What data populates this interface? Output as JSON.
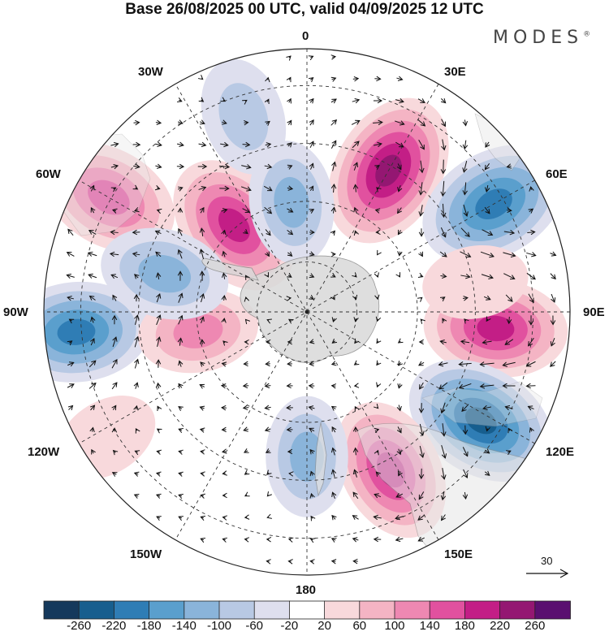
{
  "title": "Base 26/08/2025 00 UTC, valid 04/09/2025 12 UTC",
  "brand": "MODES",
  "brand_mark": "®",
  "longitude_labels": {
    "lon_0": "0",
    "lon_30e": "30E",
    "lon_60e": "60E",
    "lon_90e": "90E",
    "lon_120e": "120E",
    "lon_150e": "150E",
    "lon_180": "180",
    "lon_150w": "150W",
    "lon_120w": "120W",
    "lon_90w": "90W",
    "lon_60w": "60W",
    "lon_30w": "30W"
  },
  "reference_vector": "30",
  "colorbar": {
    "labels": [
      "-260",
      "-220",
      "-180",
      "-140",
      "-100",
      "-60",
      "-20",
      "20",
      "60",
      "100",
      "140",
      "180",
      "220",
      "260"
    ],
    "colors": [
      "#15395c",
      "#175e8e",
      "#2f7db5",
      "#5a9fcd",
      "#8ab4da",
      "#b8c9e4",
      "#dedfee",
      "#ffffff",
      "#f8d9dc",
      "#f4b4c4",
      "#ee88b2",
      "#e1519f",
      "#c31e86",
      "#941772",
      "#5a0f70"
    ]
  },
  "anomaly_centers": [
    {
      "lon": 30,
      "colat": 0.62,
      "value": 230
    },
    {
      "lon": 60,
      "colat": 0.82,
      "value": -220
    },
    {
      "lon": 95,
      "colat": 0.72,
      "value": 190
    },
    {
      "lon": 122,
      "colat": 0.78,
      "value": -230
    },
    {
      "lon": 152,
      "colat": 0.68,
      "value": 190
    },
    {
      "lon": -122,
      "colat": 0.9,
      "value": 60
    },
    {
      "lon": -95,
      "colat": 0.88,
      "value": -200
    },
    {
      "lon": -60,
      "colat": 0.87,
      "value": 180
    },
    {
      "lon": -40,
      "colat": 0.43,
      "value": 200
    },
    {
      "lon": -8,
      "colat": 0.42,
      "value": -120
    },
    {
      "lon": -18,
      "colat": 0.78,
      "value": -100
    },
    {
      "lon": 180,
      "colat": 0.55,
      "value": -110
    },
    {
      "lon": -100,
      "colat": 0.42,
      "value": 110
    },
    {
      "lon": 80,
      "colat": 0.65,
      "value": 60
    },
    {
      "lon": -75,
      "colat": 0.56,
      "value": -140
    }
  ]
}
